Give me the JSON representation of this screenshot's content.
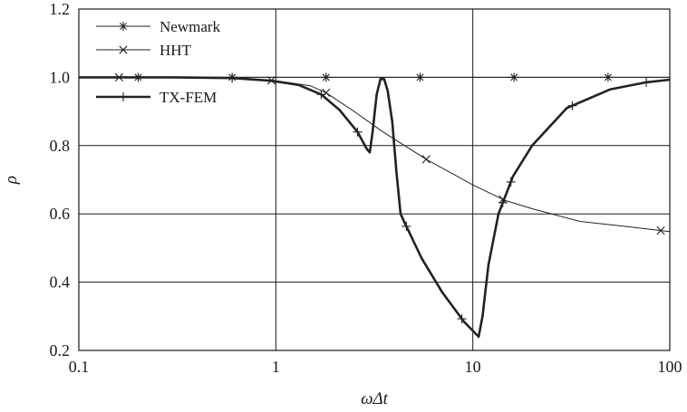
{
  "chart_data": {
    "type": "line",
    "xscale": "log",
    "xlim": [
      0.1,
      100
    ],
    "ylim": [
      0.2,
      1.2
    ],
    "xlabel": "ωΔt",
    "ylabel": "ρ",
    "grid": true,
    "legend_position": "top-left",
    "x_ticks": [
      {
        "value": 0.1,
        "label": "0.1"
      },
      {
        "value": 1,
        "label": "1"
      },
      {
        "value": 10,
        "label": "10"
      },
      {
        "value": 100,
        "label": "100"
      }
    ],
    "y_ticks": [
      {
        "value": 0.2,
        "label": "0.2"
      },
      {
        "value": 0.4,
        "label": "0.4"
      },
      {
        "value": 0.6,
        "label": "0.6"
      },
      {
        "value": 0.8,
        "label": "0.8"
      },
      {
        "value": 1.0,
        "label": "1.0"
      },
      {
        "value": 1.2,
        "label": "1.2"
      }
    ],
    "series": [
      {
        "name": "Newmark",
        "marker": "star",
        "stroke_width": 1,
        "color": "#222222",
        "x": [
          0.1,
          1,
          10,
          100
        ],
        "y": [
          1.0,
          1.0,
          1.0,
          1.0
        ],
        "marker_x": [
          0.2,
          0.6,
          1.8,
          5.4,
          16.2,
          48.6
        ]
      },
      {
        "name": "HHT",
        "marker": "x",
        "stroke_width": 1,
        "color": "#222222",
        "x": [
          0.1,
          0.3,
          0.6,
          1.0,
          1.5,
          1.8,
          2.5,
          3.5,
          5.8,
          10,
          14.5,
          20,
          35,
          60,
          100
        ],
        "y": [
          1.0,
          1.0,
          0.998,
          0.99,
          0.975,
          0.955,
          0.9,
          0.84,
          0.76,
          0.685,
          0.64,
          0.615,
          0.578,
          0.563,
          0.548
        ],
        "marker_x": [
          0.16,
          0.95,
          1.8,
          5.8,
          14.2,
          90
        ]
      },
      {
        "name": "TX-FEM",
        "marker": "plus",
        "stroke_width": 2.6,
        "color": "#222222",
        "x": [
          0.1,
          0.3,
          0.6,
          0.95,
          1.3,
          1.7,
          2.1,
          2.6,
          2.9,
          3.0,
          3.1,
          3.25,
          3.4,
          3.55,
          3.7,
          3.9,
          4.1,
          4.3,
          4.5,
          5.5,
          7.0,
          9.0,
          10.5,
          10.7,
          11.2,
          12.0,
          13.5,
          16.0,
          20.0,
          30.0,
          50.0,
          75.0,
          100.0
        ],
        "y": [
          1.0,
          1.0,
          0.998,
          0.99,
          0.978,
          0.95,
          0.905,
          0.84,
          0.79,
          0.78,
          0.84,
          0.95,
          0.995,
          0.995,
          0.96,
          0.87,
          0.72,
          0.6,
          0.575,
          0.47,
          0.37,
          0.285,
          0.245,
          0.24,
          0.3,
          0.45,
          0.6,
          0.71,
          0.8,
          0.91,
          0.965,
          0.985,
          0.993
        ],
        "marker_x": [
          0.6,
          1.7,
          2.6,
          4.6,
          8.8,
          14.2,
          15.6,
          32,
          76
        ]
      }
    ]
  }
}
